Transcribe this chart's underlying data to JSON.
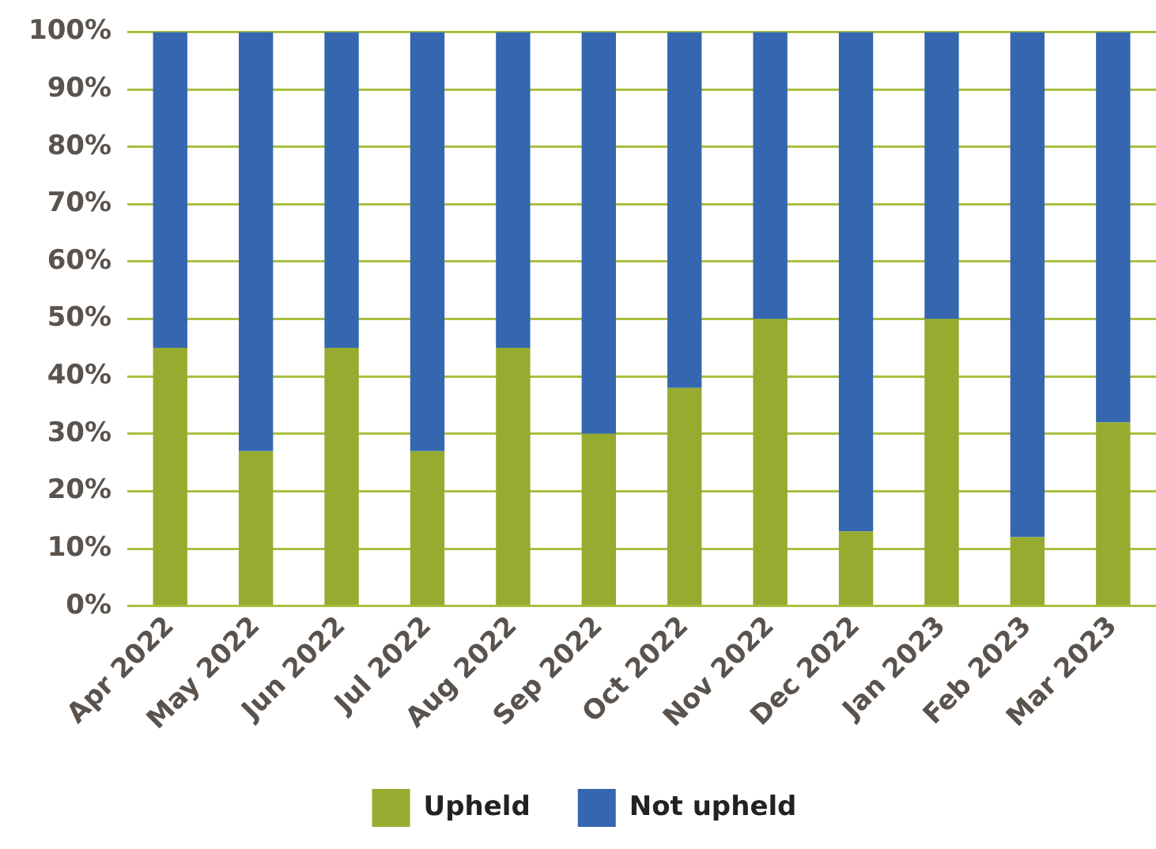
{
  "chart_data": {
    "type": "bar",
    "stacked": true,
    "categories": [
      "Apr 2022",
      "May 2022",
      "Jun 2022",
      "Jul 2022",
      "Aug 2022",
      "Sep 2022",
      "Oct 2022",
      "Nov 2022",
      "Dec 2022",
      "Jan 2023",
      "Feb 2023",
      "Mar 2023"
    ],
    "series": [
      {
        "name": "Upheld",
        "color": "#96ab2f",
        "values": [
          45,
          27,
          45,
          27,
          45,
          30,
          38,
          50,
          13,
          50,
          12,
          32
        ]
      },
      {
        "name": "Not upheld",
        "color": "#3567b0",
        "values": [
          55,
          73,
          55,
          73,
          55,
          70,
          62,
          50,
          87,
          50,
          88,
          68
        ]
      }
    ],
    "ylim": [
      0,
      100
    ],
    "yticks": [
      {
        "value": 0,
        "label": "0%"
      },
      {
        "value": 10,
        "label": "10%"
      },
      {
        "value": 20,
        "label": "20%"
      },
      {
        "value": 30,
        "label": "30%"
      },
      {
        "value": 40,
        "label": "40%"
      },
      {
        "value": 50,
        "label": "50%"
      },
      {
        "value": 60,
        "label": "60%"
      },
      {
        "value": 70,
        "label": "70%"
      },
      {
        "value": 80,
        "label": "80%"
      },
      {
        "value": 90,
        "label": "90%"
      },
      {
        "value": 100,
        "label": "100%"
      }
    ],
    "grid": "y",
    "legend": "bottom"
  }
}
